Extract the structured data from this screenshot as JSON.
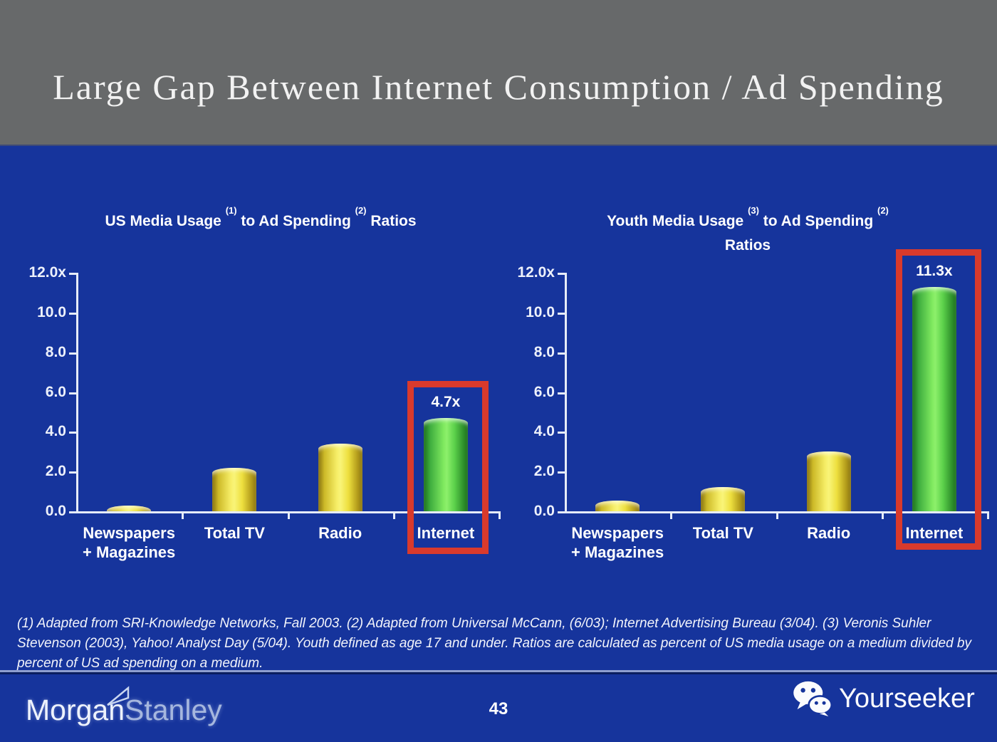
{
  "slide": {
    "title": "Large Gap Between Internet Consumption / Ad Spending",
    "page_number": "43",
    "footnote": "(1) Adapted from SRI-Knowledge Networks, Fall 2003.  (2) Adapted from Universal McCann, (6/03); Internet Advertising Bureau (3/04). (3) Veronis Suhler Stevenson (2003), Yahoo! Analyst Day (5/04).  Youth defined as age 17 and under.  Ratios are calculated as percent of US media usage on a medium divided by percent of US ad spending on a medium.",
    "brand": {
      "morgan": "Morgan",
      "stanley": "Stanley"
    },
    "watermark": {
      "label": "Yourseeker",
      "icon": "wechat-icon"
    }
  },
  "colors": {
    "background_blue": "#16349C",
    "header_gray": "#67696A",
    "bar_yellow": "#F2E648",
    "bar_green": "#59D348",
    "highlight_red": "#D93A2C",
    "axis_white": "#E6ECF8"
  },
  "chart_data": [
    {
      "type": "bar",
      "title_segments": [
        {
          "text": "US Media Usage "
        },
        {
          "sup": "(1)"
        },
        {
          "text": " to Ad Spending "
        },
        {
          "sup": "(2)"
        },
        {
          "text": " Ratios"
        }
      ],
      "categories": [
        [
          "Newspapers",
          "+ Magazines"
        ],
        [
          "Total TV"
        ],
        [
          "Radio"
        ],
        [
          "Internet"
        ]
      ],
      "values": [
        0.3,
        2.2,
        3.4,
        4.7
      ],
      "bar_colors": [
        "yellow",
        "yellow",
        "yellow",
        "green"
      ],
      "value_labels": [
        null,
        null,
        null,
        "4.7x"
      ],
      "highlight_index": 3,
      "ylim": [
        0,
        12
      ],
      "ytick_labels": [
        "12.0x",
        "10.0",
        "8.0",
        "6.0",
        "4.0",
        "2.0",
        "0.0"
      ],
      "grid": false,
      "legend": "none"
    },
    {
      "type": "bar",
      "title_segments": [
        {
          "text": "Youth Media Usage "
        },
        {
          "sup": "(3)"
        },
        {
          "text": " to Ad Spending "
        },
        {
          "sup": "(2)"
        },
        {
          "br": true
        },
        {
          "text": "Ratios"
        }
      ],
      "categories": [
        [
          "Newspapers",
          "+ Magazines"
        ],
        [
          "Total TV"
        ],
        [
          "Radio"
        ],
        [
          "Internet"
        ]
      ],
      "values": [
        0.55,
        1.2,
        3.0,
        11.3
      ],
      "bar_colors": [
        "yellow",
        "yellow",
        "yellow",
        "green"
      ],
      "value_labels": [
        null,
        null,
        null,
        "11.3x"
      ],
      "highlight_index": 3,
      "ylim": [
        0,
        12
      ],
      "ytick_labels": [
        "12.0x",
        "10.0",
        "8.0",
        "6.0",
        "4.0",
        "2.0",
        "0.0"
      ],
      "grid": false,
      "legend": "none"
    }
  ]
}
